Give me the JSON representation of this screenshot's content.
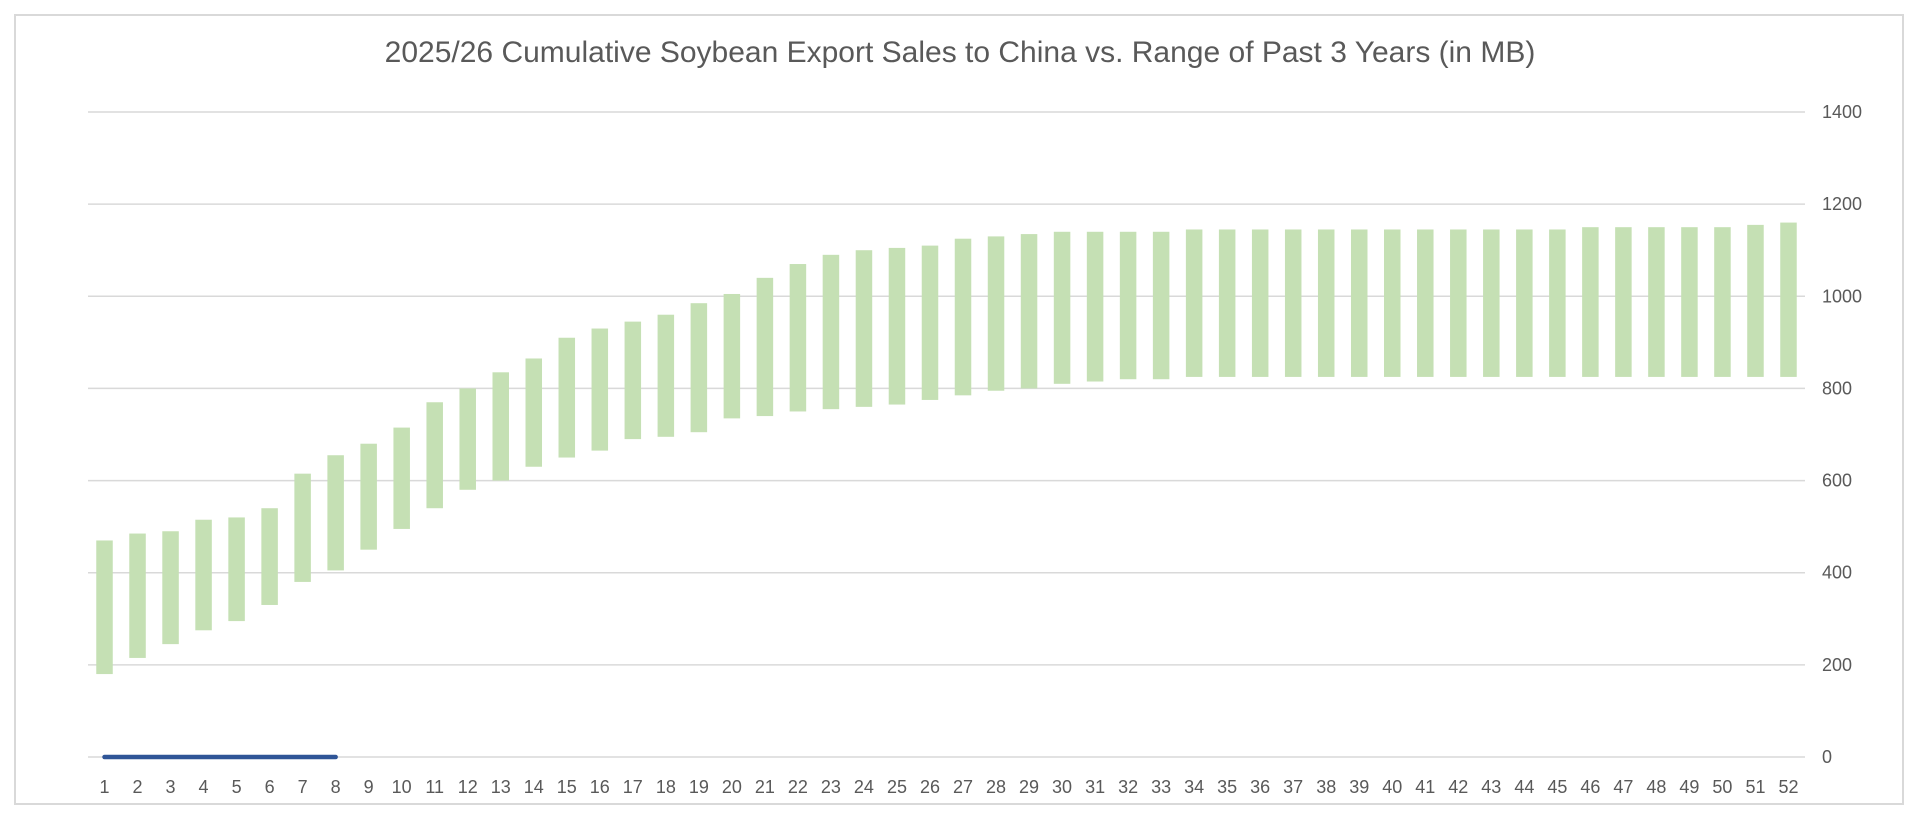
{
  "chart_data": {
    "type": "bar",
    "title": "2025/26 Cumulative Soybean Export Sales to China vs. Range of Past 3 Years (in MB)",
    "xlabel": "",
    "ylabel": "",
    "ylim": [
      0,
      1400
    ],
    "y_axis_side": "right",
    "y_ticks": [
      "0",
      "200",
      "400",
      "600",
      "800",
      "1000",
      "1200",
      "1400"
    ],
    "grid": true,
    "legend": "none",
    "categories": [
      "1",
      "2",
      "3",
      "4",
      "5",
      "6",
      "7",
      "8",
      "9",
      "10",
      "11",
      "12",
      "13",
      "14",
      "15",
      "16",
      "17",
      "18",
      "19",
      "20",
      "21",
      "22",
      "23",
      "24",
      "25",
      "26",
      "27",
      "28",
      "29",
      "30",
      "31",
      "32",
      "33",
      "34",
      "35",
      "36",
      "37",
      "38",
      "39",
      "40",
      "41",
      "42",
      "43",
      "44",
      "45",
      "46",
      "47",
      "48",
      "49",
      "50",
      "51",
      "52"
    ],
    "series": [
      {
        "type": "floating-bar",
        "color": "#c5e0b4",
        "low": [
          180,
          215,
          245,
          275,
          295,
          330,
          380,
          405,
          450,
          495,
          540,
          580,
          600,
          630,
          650,
          665,
          690,
          695,
          705,
          735,
          740,
          750,
          755,
          760,
          765,
          775,
          785,
          795,
          800,
          810,
          815,
          820,
          820,
          825,
          825,
          825,
          825,
          825,
          825,
          825,
          825,
          825,
          825,
          825,
          825,
          825,
          825,
          825,
          825,
          825,
          825,
          825
        ],
        "high": [
          470,
          485,
          490,
          515,
          520,
          540,
          615,
          655,
          680,
          715,
          770,
          800,
          835,
          865,
          910,
          930,
          945,
          960,
          985,
          1005,
          1040,
          1070,
          1090,
          1100,
          1105,
          1110,
          1125,
          1130,
          1135,
          1140,
          1140,
          1140,
          1140,
          1145,
          1145,
          1145,
          1145,
          1145,
          1145,
          1145,
          1145,
          1145,
          1145,
          1145,
          1145,
          1150,
          1150,
          1150,
          1150,
          1150,
          1155,
          1160
        ]
      },
      {
        "type": "line",
        "color": "#2f5597",
        "x": [
          "1",
          "2",
          "3",
          "4",
          "5",
          "6",
          "7",
          "8"
        ],
        "values": [
          0,
          0,
          0,
          0,
          0,
          0,
          0,
          0
        ]
      }
    ]
  }
}
